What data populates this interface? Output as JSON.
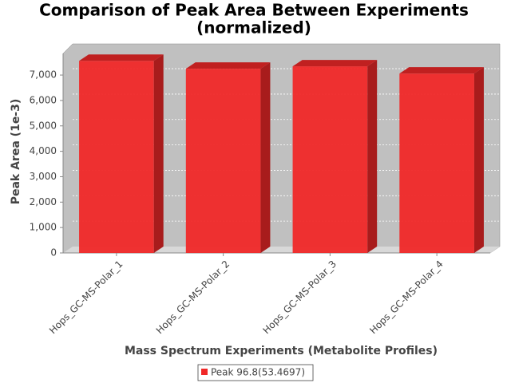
{
  "chart_data": {
    "type": "bar3d",
    "title": [
      "Comparison of Peak Area Between Experiments",
      "(normalized)"
    ],
    "x_label": "Mass Spectrum Experiments (Metabolite Profiles)",
    "y_label": "Peak Area (1e-3)",
    "categories": [
      "Hops_GC-MS-Polar_1",
      "Hops_GC-MS-Polar_2",
      "Hops_GC-MS-Polar_3",
      "Hops_GC-MS-Polar_4"
    ],
    "series": [
      {
        "name": "Peak 96.8(53.4697)",
        "color": "#f02828",
        "values": [
          7560,
          7250,
          7345,
          7060
        ]
      }
    ],
    "ylim": [
      0,
      7850
    ],
    "yticks": [
      0,
      {
        "value": 1000,
        "label": "1,000"
      },
      {
        "value": 2000,
        "label": "2,000"
      },
      {
        "value": 3000,
        "label": "3,000"
      },
      {
        "value": 4000,
        "label": "4,000"
      },
      {
        "value": 5000,
        "label": "5,000"
      },
      {
        "value": 6000,
        "label": "6,000"
      },
      {
        "value": 7000,
        "label": "7,000"
      }
    ],
    "grid": true,
    "legend": "bottom"
  }
}
